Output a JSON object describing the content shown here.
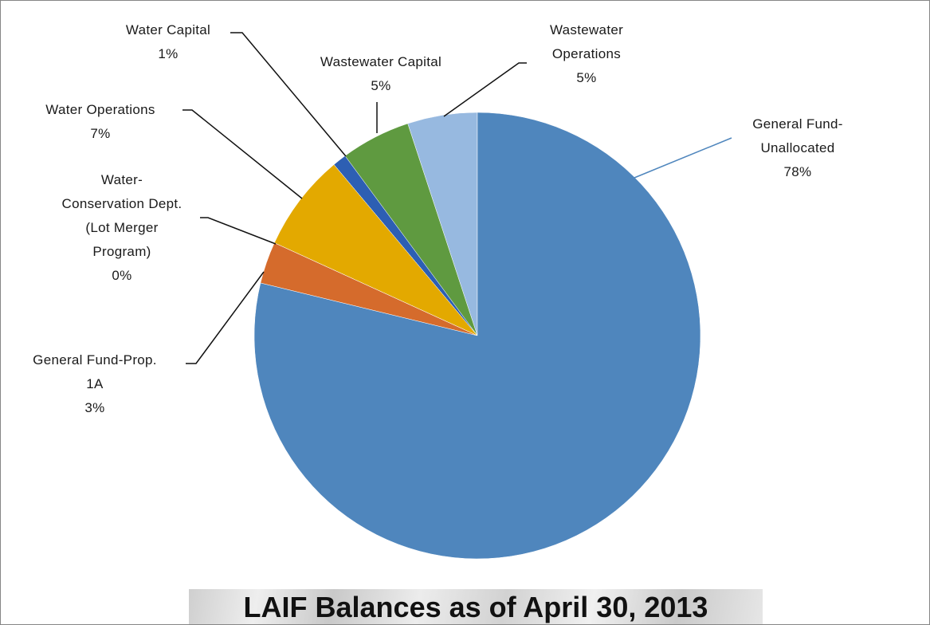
{
  "chart_data": {
    "type": "pie",
    "title": "LAIF Balances as of April 30, 2013",
    "categories": [
      "General Fund-\nUnallocated",
      "General Fund-Prop.\n1A",
      "Water-\nConservation Dept.\n(Lot Merger\nProgram)",
      "Water Operations",
      "Water Capital",
      "Wastewater Capital",
      "Wastewater\nOperations"
    ],
    "values": [
      78,
      3,
      0,
      7,
      1,
      5,
      5
    ],
    "value_labels": [
      "78%",
      "3%",
      "0%",
      "7%",
      "1%",
      "5%",
      "5%"
    ],
    "colors": [
      "#4f86bd",
      "#d56b2c",
      "#a5a5a5",
      "#e3a900",
      "#2d5fb3",
      "#5f9a40",
      "#97b9e0"
    ]
  }
}
